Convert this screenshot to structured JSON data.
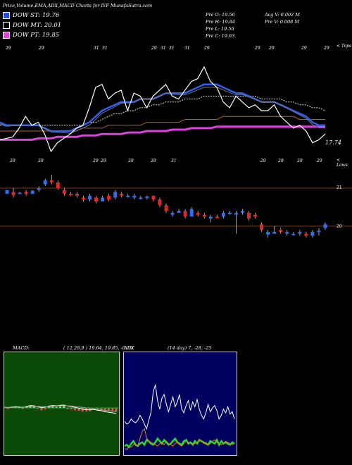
{
  "header": {
    "title": "Price,Volume,EMA,ADX,MACD Charts for IYF MunafaSutra.com",
    "legend": [
      {
        "label": "DOW ST: 19.76",
        "color": "#1f4fe0"
      },
      {
        "label": "DOW MT: 20.01",
        "color": "#000000"
      },
      {
        "label": "DOW PT: 19.85",
        "color": "#e040e0"
      }
    ],
    "info": {
      "pre_o": "Pre   O: 19.56",
      "pre_h": "Pre   H: 19.84",
      "pre_l": "Pre   L: 19.56",
      "pre_c": "Pre   C: 19.63",
      "avg_v": "Avg V: 0.002  M",
      "pre_v": "Pre   V: 0.008  M"
    }
  },
  "price_panel": {
    "tops_label": "< Tops",
    "lows_label": "< Lows",
    "last_value": "17.74",
    "top_marks": [
      "29",
      "29",
      "31",
      "31",
      "29",
      "31",
      "31",
      "31",
      "29",
      "29",
      "29",
      "29",
      "29"
    ],
    "low_marks": [
      "29",
      "29",
      "29",
      "29",
      "29",
      "29",
      "31",
      "29",
      "29",
      "29",
      "29"
    ]
  },
  "candle_panel": {
    "levels": [
      "21",
      "20"
    ]
  },
  "macd_panel": {
    "label": "MACD:",
    "params": "( 12,26,9 ) 19.64,  19.85,  -0.19"
  },
  "adx_panel": {
    "label": "ADX",
    "params": "(14  day) 7,  -28,  -25"
  },
  "chart_data": [
    {
      "type": "line",
      "name": "price-ema",
      "series": [
        {
          "values": [
            19.3,
            19.35,
            19.4,
            19.7,
            20.1,
            19.8,
            19.9,
            19.5,
            18.9,
            19.2,
            19.35,
            19.5,
            19.7,
            19.8,
            20.4,
            21.1,
            21.2,
            20.7,
            20.9,
            21.0,
            20.3,
            20.9,
            20.8,
            20.4,
            20.8,
            21.0,
            21.2,
            20.8,
            20.7,
            21.0,
            21.3,
            21.4,
            21.8,
            21.3,
            21.1,
            20.6,
            20.4,
            20.8,
            20.6,
            20.4,
            20.5,
            20.3,
            20.3,
            20.5,
            20.1,
            19.9,
            19.7,
            19.8,
            19.6,
            19.2,
            19.3,
            19.5
          ]
        },
        {
          "values": [
            19.9,
            19.8,
            19.8,
            19.8,
            19.8,
            19.8,
            19.8,
            19.7,
            19.6,
            19.6,
            19.6,
            19.6,
            19.7,
            19.8,
            19.9,
            20.1,
            20.3,
            20.4,
            20.5,
            20.6,
            20.6,
            20.6,
            20.7,
            20.7,
            20.7,
            20.8,
            20.9,
            20.9,
            20.9,
            20.9,
            21.0,
            21.1,
            21.2,
            21.2,
            21.2,
            21.1,
            21.0,
            20.9,
            20.9,
            20.8,
            20.7,
            20.6,
            20.6,
            20.6,
            20.5,
            20.4,
            20.3,
            20.2,
            20.1,
            19.9,
            19.8,
            19.8
          ]
        },
        {
          "values": [
            19.8,
            19.8,
            19.8,
            19.8,
            19.8,
            19.8,
            19.8,
            19.8,
            19.8,
            19.8,
            19.8,
            19.8,
            19.8,
            19.8,
            19.9,
            19.9,
            20.0,
            20.1,
            20.2,
            20.2,
            20.3,
            20.3,
            20.4,
            20.4,
            20.5,
            20.5,
            20.6,
            20.6,
            20.6,
            20.7,
            20.7,
            20.7,
            20.8,
            20.8,
            20.8,
            20.8,
            20.8,
            20.8,
            20.8,
            20.8,
            20.8,
            20.7,
            20.7,
            20.7,
            20.7,
            20.6,
            20.6,
            20.5,
            20.5,
            20.4,
            20.4,
            20.3
          ]
        },
        {
          "values": [
            19.6,
            19.6,
            19.6,
            19.6,
            19.6,
            19.6,
            19.6,
            19.6,
            19.6,
            19.6,
            19.6,
            19.6,
            19.6,
            19.7,
            19.7,
            19.7,
            19.7,
            19.8,
            19.8,
            19.8,
            19.8,
            19.8,
            19.8,
            19.9,
            19.9,
            19.9,
            19.9,
            19.9,
            19.9,
            20.0,
            20.0,
            20.0,
            20.0,
            20.0,
            20.0,
            20.1,
            20.1,
            20.1,
            20.1,
            20.1,
            20.1,
            20.1,
            20.1,
            20.1,
            20.1,
            20.1,
            20.1,
            20.0,
            20.0,
            20.0,
            20.0,
            20.0
          ]
        },
        {
          "values": [
            19.3,
            19.3,
            19.3,
            19.3,
            19.3,
            19.3,
            19.35,
            19.35,
            19.35,
            19.4,
            19.4,
            19.4,
            19.4,
            19.45,
            19.45,
            19.45,
            19.5,
            19.5,
            19.5,
            19.5,
            19.55,
            19.55,
            19.55,
            19.6,
            19.6,
            19.6,
            19.6,
            19.65,
            19.65,
            19.65,
            19.7,
            19.7,
            19.7,
            19.7,
            19.75,
            19.75,
            19.75,
            19.75,
            19.75,
            19.75,
            19.75,
            19.75,
            19.75,
            19.75,
            19.75,
            19.75,
            19.75,
            19.75,
            19.75,
            19.75,
            19.75,
            19.75
          ]
        }
      ]
    },
    {
      "type": "candlestick",
      "name": "ohlc",
      "series": [
        {
          "name": "candles",
          "values": [
            [
              20.95,
              20.95,
              20.85,
              20.85,
              "up"
            ],
            [
              20.9,
              21.0,
              20.75,
              20.82,
              "down"
            ],
            [
              20.85,
              20.9,
              20.85,
              20.88,
              "up"
            ],
            [
              20.9,
              20.95,
              20.8,
              20.85,
              "down"
            ],
            [
              20.85,
              20.95,
              20.85,
              20.93,
              "up"
            ],
            [
              20.95,
              21.05,
              20.9,
              21.0,
              "up"
            ],
            [
              21.1,
              21.25,
              21.05,
              21.2,
              "up"
            ],
            [
              21.2,
              21.35,
              21.1,
              21.15,
              "down"
            ],
            [
              21.15,
              21.2,
              20.95,
              21.0,
              "down"
            ],
            [
              20.95,
              21.0,
              20.8,
              20.85,
              "down"
            ],
            [
              20.85,
              20.9,
              20.8,
              20.82,
              "down"
            ],
            [
              20.85,
              20.9,
              20.75,
              20.8,
              "down"
            ],
            [
              20.75,
              20.8,
              20.65,
              20.7,
              "down"
            ],
            [
              20.7,
              20.85,
              20.65,
              20.8,
              "up"
            ],
            [
              20.75,
              20.8,
              20.6,
              20.65,
              "down"
            ],
            [
              20.65,
              20.8,
              20.65,
              20.75,
              "up"
            ],
            [
              20.8,
              20.85,
              20.65,
              20.7,
              "down"
            ],
            [
              20.75,
              20.95,
              20.7,
              20.9,
              "up"
            ],
            [
              20.85,
              20.9,
              20.75,
              20.8,
              "down"
            ],
            [
              20.8,
              20.85,
              20.75,
              20.8,
              "up"
            ],
            [
              20.75,
              20.85,
              20.7,
              20.8,
              "up"
            ],
            [
              20.75,
              20.8,
              20.7,
              20.75,
              "up"
            ],
            [
              20.75,
              20.8,
              20.7,
              20.78,
              "up"
            ],
            [
              20.8,
              20.8,
              20.65,
              20.7,
              "down"
            ],
            [
              20.7,
              20.75,
              20.5,
              20.55,
              "down"
            ],
            [
              20.55,
              20.6,
              20.35,
              20.4,
              "down"
            ],
            [
              20.35,
              20.4,
              20.25,
              20.3,
              "up"
            ],
            [
              20.35,
              20.45,
              20.35,
              20.4,
              "up"
            ],
            [
              20.4,
              20.45,
              20.2,
              20.25,
              "down"
            ],
            [
              20.25,
              20.5,
              20.25,
              20.45,
              "up"
            ],
            [
              20.35,
              20.4,
              20.25,
              20.3,
              "down"
            ],
            [
              20.3,
              20.35,
              20.2,
              20.25,
              "down"
            ],
            [
              20.2,
              20.3,
              20.1,
              20.25,
              "up"
            ],
            [
              20.25,
              20.3,
              20.2,
              20.22,
              "down"
            ],
            [
              20.25,
              20.4,
              20.2,
              20.35,
              "up"
            ],
            [
              20.35,
              20.4,
              20.3,
              20.35,
              "up"
            ],
            [
              20.35,
              20.4,
              19.8,
              20.3,
              "up"
            ],
            [
              20.4,
              20.45,
              20.3,
              20.35,
              "up"
            ],
            [
              20.35,
              20.4,
              20.15,
              20.2,
              "down"
            ],
            [
              20.25,
              20.35,
              20.2,
              20.3,
              "down"
            ],
            [
              20.05,
              20.1,
              19.85,
              19.9,
              "down"
            ],
            [
              19.85,
              19.9,
              19.7,
              19.78,
              "up"
            ],
            [
              19.8,
              20.0,
              19.8,
              19.85,
              "up"
            ],
            [
              19.85,
              19.95,
              19.8,
              19.9,
              "down"
            ],
            [
              19.8,
              19.9,
              19.75,
              19.85,
              "up"
            ],
            [
              19.8,
              19.85,
              19.75,
              19.78,
              "up"
            ],
            [
              19.8,
              19.9,
              19.75,
              19.85,
              "up"
            ],
            [
              19.8,
              19.85,
              19.7,
              19.75,
              "down"
            ],
            [
              19.75,
              19.9,
              19.7,
              19.85,
              "up"
            ],
            [
              19.85,
              19.95,
              19.75,
              19.88,
              "up"
            ],
            [
              19.95,
              20.1,
              19.9,
              20.05,
              "up"
            ]
          ]
        }
      ]
    },
    {
      "type": "line",
      "name": "macd",
      "series": [
        {
          "values": [
            0.05,
            0.04,
            0.06,
            0.08,
            0.07,
            0.05,
            0.09,
            0.12,
            0.11,
            0.08,
            0.04,
            0.06,
            0.1,
            0.12,
            0.11,
            0.13,
            0.14,
            0.1,
            0.08,
            0.05,
            0.02,
            -0.02,
            -0.04,
            -0.05,
            -0.03,
            -0.06,
            -0.08,
            -0.12,
            -0.14,
            -0.16,
            -0.19
          ]
        },
        {
          "values": [
            0.04,
            0.05,
            0.05,
            0.06,
            0.06,
            0.06,
            0.07,
            0.08,
            0.09,
            0.09,
            0.08,
            0.08,
            0.08,
            0.09,
            0.1,
            0.11,
            0.11,
            0.11,
            0.1,
            0.09,
            0.07,
            0.05,
            0.03,
            0.01,
            -0.01,
            -0.02,
            -0.04,
            -0.06,
            -0.08,
            -0.1,
            -0.12
          ]
        }
      ]
    },
    {
      "type": "line",
      "name": "adx",
      "series": [
        {
          "values": [
            28,
            26,
            27,
            30,
            28,
            27,
            29,
            33,
            30,
            26,
            22,
            29,
            35,
            52,
            58,
            45,
            38,
            47,
            50,
            42,
            36,
            42,
            48,
            40,
            44,
            50,
            38,
            35,
            41,
            45,
            37,
            44,
            40,
            46,
            38,
            33,
            30,
            35,
            42,
            36,
            39,
            41,
            37,
            30,
            33,
            38,
            35,
            40,
            34,
            36,
            30
          ]
        },
        {
          "values": [
            8,
            9,
            7,
            10,
            12,
            9,
            8,
            10,
            11,
            9,
            13,
            12,
            10,
            9,
            11,
            14,
            12,
            10,
            13,
            11,
            9,
            10,
            12,
            14,
            11,
            10,
            9,
            12,
            13,
            10,
            11,
            9,
            12,
            10,
            13,
            12,
            11,
            10,
            9,
            12,
            11,
            10,
            13,
            9,
            12,
            10,
            11,
            10,
            9,
            11,
            10
          ]
        },
        {
          "values": [
            6,
            5,
            8,
            7,
            9,
            10,
            8,
            14,
            20,
            22,
            15,
            12,
            11,
            10,
            9,
            8,
            10,
            11,
            9,
            12,
            10,
            9,
            8,
            10,
            11,
            9,
            8,
            10,
            12,
            11,
            10,
            9,
            10,
            11,
            13,
            12,
            10,
            11,
            9,
            10,
            12,
            13,
            11,
            10,
            9,
            10,
            12,
            11,
            10,
            9,
            10
          ]
        }
      ]
    }
  ]
}
